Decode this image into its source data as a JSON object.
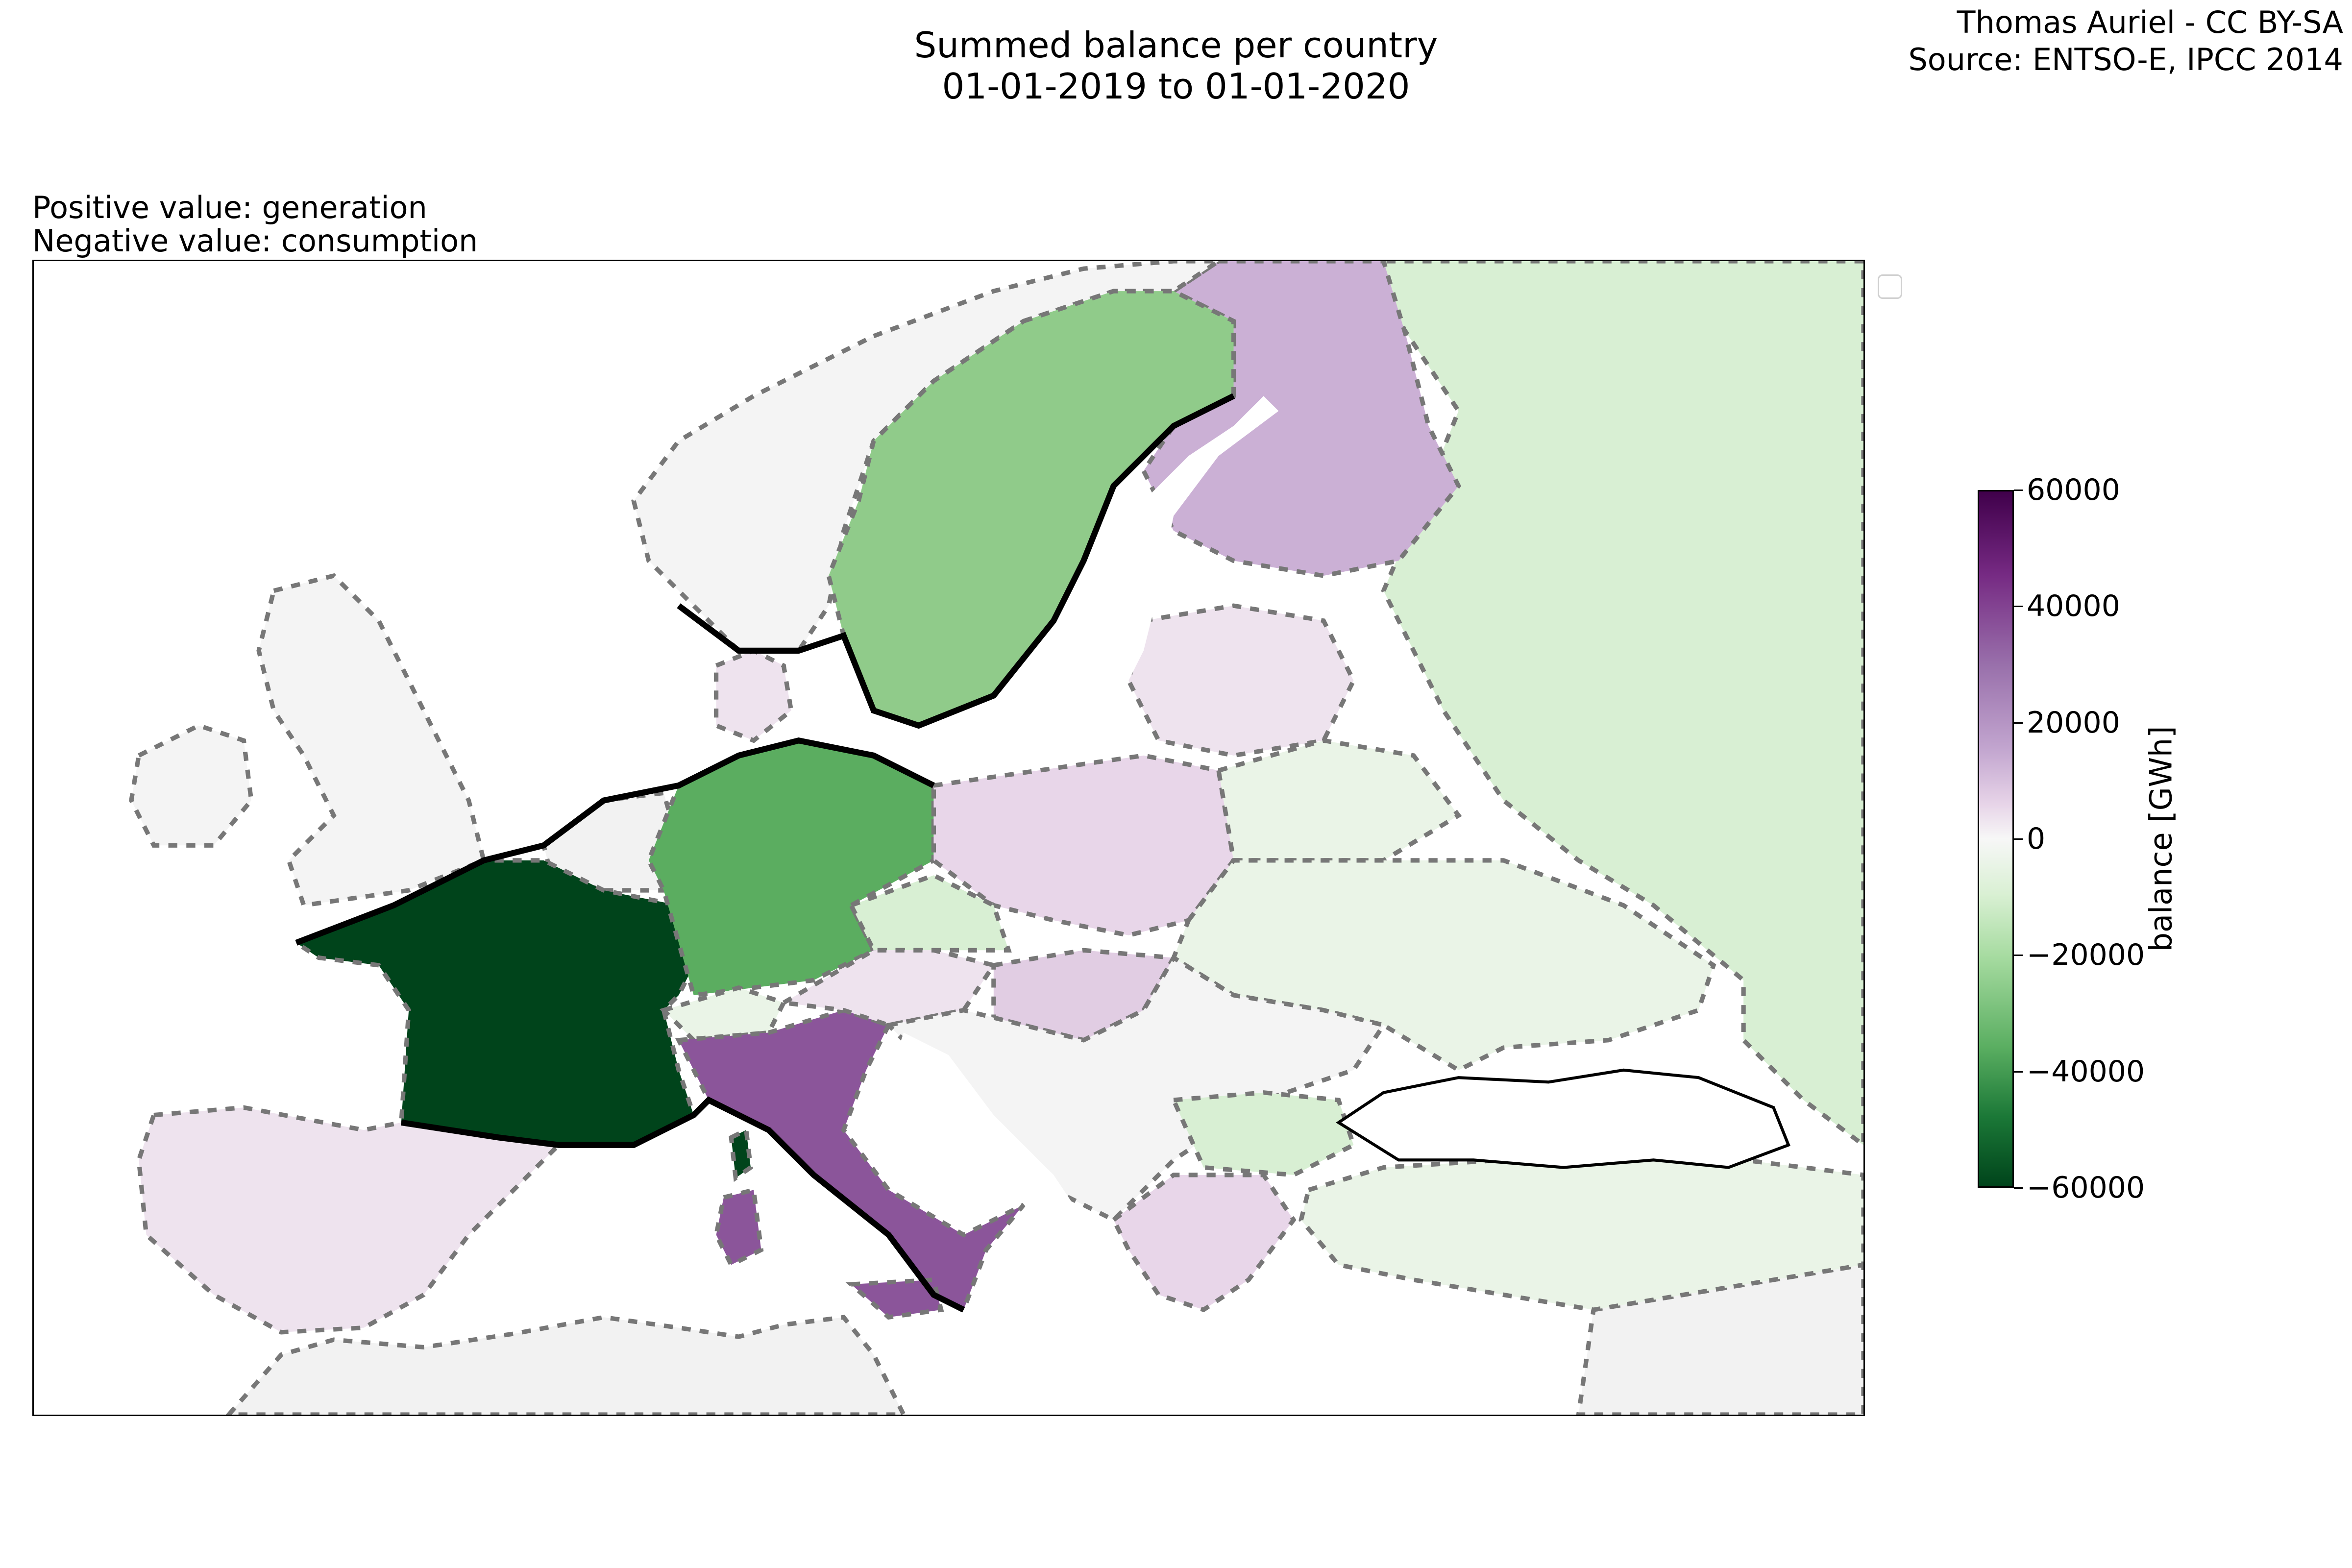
{
  "title": {
    "line1": "Summed balance per country",
    "line2": "01-01-2019 to 01-01-2020"
  },
  "credit": {
    "line1": "Thomas Auriel - CC BY-SA",
    "line2": "Source: ENTSO-E, IPCC 2014"
  },
  "note": {
    "line1": "Positive value: generation",
    "line2": "Negative value: consumption"
  },
  "colorbar": {
    "label": "balance [GWh]",
    "colormap": "PRGn",
    "range": [
      -60000,
      60000
    ],
    "ticks": [
      "60000",
      "40000",
      "20000",
      "0",
      "−20000",
      "−40000",
      "−60000"
    ]
  },
  "colors": {
    "strong_purple": "#8b559a",
    "purple": "#cbb0d5",
    "light_purple": "#e8d6e9",
    "pale_purple": "#eee3ee",
    "neutral": "#f4f4f4",
    "pale_green": "#eaf4e7",
    "light_green": "#d8efd3",
    "green": "#90cb8a",
    "mid_green": "#5bad60",
    "dark_green": "#00441b",
    "land_none": "#f2f2f2",
    "sea": "#ffffff"
  },
  "regions": [
    {
      "id": "norway",
      "color": "#f4f4f4"
    },
    {
      "id": "sweden",
      "color": "#90cb8a"
    },
    {
      "id": "finland",
      "color": "#cbb0d5"
    },
    {
      "id": "russia",
      "color": "#d8efd3"
    },
    {
      "id": "uk",
      "color": "#f4f4f4"
    },
    {
      "id": "ireland",
      "color": "#f4f4f4"
    },
    {
      "id": "france",
      "color": "#00441b"
    },
    {
      "id": "corsica",
      "color": "#00441b"
    },
    {
      "id": "spain-portugal",
      "color": "#eee3ee"
    },
    {
      "id": "germany",
      "color": "#5bad60"
    },
    {
      "id": "poland",
      "color": "#e8d6e9"
    },
    {
      "id": "italy",
      "color": "#8b559a"
    },
    {
      "id": "sardinia",
      "color": "#8b559a"
    },
    {
      "id": "sicily",
      "color": "#8b559a"
    },
    {
      "id": "czechia",
      "color": "#d8efd3"
    },
    {
      "id": "austria",
      "color": "#eee3ee"
    },
    {
      "id": "hungary",
      "color": "#e1cde3"
    },
    {
      "id": "denmark",
      "color": "#eee3ee"
    },
    {
      "id": "benelux",
      "color": "#f2f2f2"
    },
    {
      "id": "switzerland",
      "color": "#eaf4e7"
    },
    {
      "id": "baltics",
      "color": "#eee3ee"
    },
    {
      "id": "belarus",
      "color": "#eaf4e7"
    },
    {
      "id": "ukraine",
      "color": "#eaf4e7"
    },
    {
      "id": "balkans",
      "color": "#f4f4f4"
    },
    {
      "id": "bulgaria",
      "color": "#d8efd3"
    },
    {
      "id": "greece",
      "color": "#e8d6e9"
    },
    {
      "id": "turkey",
      "color": "#eaf4e7"
    },
    {
      "id": "north-africa",
      "color": "#f2f2f2"
    }
  ]
}
